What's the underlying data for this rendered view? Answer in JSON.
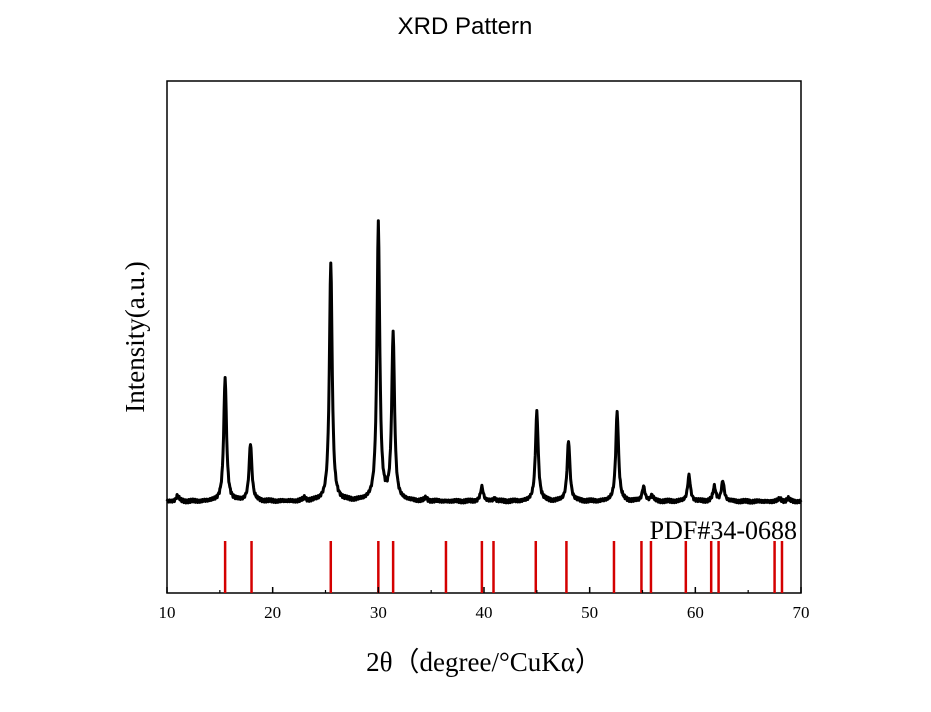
{
  "chart_data": {
    "type": "line",
    "title": "XRD Pattern",
    "xlabel": "2θ（degree/°CuKα）",
    "ylabel": "Intensity(a.u.)",
    "xlim": [
      10,
      70
    ],
    "xticks": [
      10,
      20,
      30,
      40,
      50,
      60,
      70
    ],
    "y_ticks_shown": false,
    "grid": false,
    "series": [
      {
        "color": "#000000",
        "baseline": 0.04,
        "peaks": [
          {
            "x": 11.0,
            "y": 0.02
          },
          {
            "x": 15.5,
            "y": 0.43
          },
          {
            "x": 17.9,
            "y": 0.2
          },
          {
            "x": 23.0,
            "y": 0.01
          },
          {
            "x": 25.5,
            "y": 0.83
          },
          {
            "x": 30.0,
            "y": 0.96
          },
          {
            "x": 31.4,
            "y": 0.58
          },
          {
            "x": 34.5,
            "y": 0.01
          },
          {
            "x": 39.8,
            "y": 0.05
          },
          {
            "x": 41.0,
            "y": 0.01
          },
          {
            "x": 45.0,
            "y": 0.31
          },
          {
            "x": 48.0,
            "y": 0.21
          },
          {
            "x": 52.6,
            "y": 0.31
          },
          {
            "x": 55.1,
            "y": 0.05
          },
          {
            "x": 55.9,
            "y": 0.02
          },
          {
            "x": 59.4,
            "y": 0.09
          },
          {
            "x": 61.8,
            "y": 0.05
          },
          {
            "x": 62.6,
            "y": 0.07
          },
          {
            "x": 68.0,
            "y": 0.01
          },
          {
            "x": 68.8,
            "y": 0.01
          }
        ]
      }
    ],
    "reference": {
      "label": "PDF#34-0688",
      "color": "#d40000",
      "positions": [
        15.5,
        18.0,
        25.5,
        30.0,
        31.4,
        36.4,
        39.8,
        40.9,
        44.9,
        47.8,
        52.3,
        54.9,
        55.8,
        59.1,
        61.5,
        62.2,
        67.5,
        68.2
      ]
    }
  }
}
